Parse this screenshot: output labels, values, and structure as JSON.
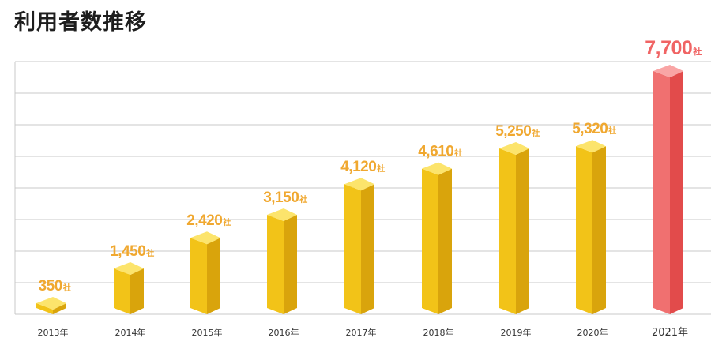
{
  "page": {
    "title": "利用者数推移"
  },
  "chart_data": {
    "type": "bar",
    "title": "利用者数推移",
    "categories": [
      "2013年",
      "2014年",
      "2015年",
      "2016年",
      "2017年",
      "2018年",
      "2019年",
      "2020年",
      "2021年"
    ],
    "values": [
      350,
      1450,
      2420,
      3150,
      4120,
      4610,
      5250,
      5320,
      7700
    ],
    "value_labels": [
      "350",
      "1,450",
      "2,420",
      "3,150",
      "4,120",
      "4,610",
      "5,250",
      "5,320",
      "7,700"
    ],
    "unit": "社",
    "ylim": [
      0,
      8000
    ],
    "grid": true,
    "highlight_index": 8,
    "colors": {
      "bar_front": "#F2C318",
      "bar_side": "#D9A40C",
      "bar_top": "#FCE46C",
      "label": "#F0A830",
      "highlight_front": "#F07070",
      "highlight_side": "#E24B4B",
      "highlight_top": "#F9A5A5",
      "highlight_label": "#F06464",
      "grid": "#C8C8C8",
      "axis_text": "#333333"
    }
  }
}
